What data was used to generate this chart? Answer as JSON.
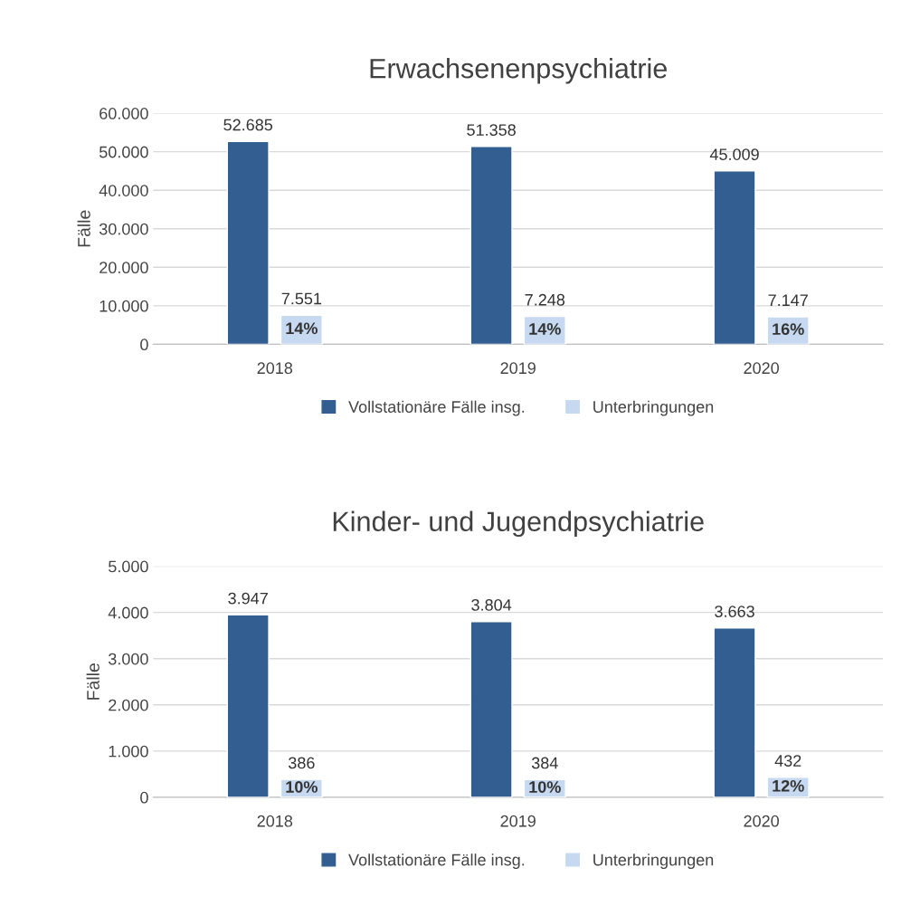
{
  "chart_data": [
    {
      "type": "bar",
      "title": "Erwachsenenpsychiatrie",
      "ylabel": "Fälle",
      "categories": [
        "2018",
        "2019",
        "2020"
      ],
      "series": [
        {
          "name": "Vollstationäre Fälle insg.",
          "color": "#335e91",
          "values": [
            52685,
            51358,
            45009
          ],
          "value_labels": [
            "52.685",
            "51.358",
            "45.009"
          ]
        },
        {
          "name": "Unterbringungen",
          "color": "#c6d9f0",
          "values": [
            7551,
            7248,
            7147
          ],
          "value_labels": [
            "7.551",
            "7.248",
            "7.147"
          ]
        }
      ],
      "ylim": [
        0,
        60000
      ],
      "yticks": [
        0,
        {
          "value": 10000,
          "label": "10.000"
        },
        {
          "value": 20000,
          "label": "20.000"
        },
        {
          "value": 30000,
          "label": "30.000"
        },
        {
          "value": 40000,
          "label": "40.000"
        },
        {
          "value": 50000,
          "label": "50.000"
        },
        {
          "value": 60000,
          "label": "60.000"
        }
      ],
      "annotations": [
        "14%",
        "14%",
        "16%"
      ],
      "grid": "y",
      "legend": "bottom"
    },
    {
      "type": "bar",
      "title": "Kinder- und Jugendpsychiatrie",
      "ylabel": "Fälle",
      "categories": [
        "2018",
        "2019",
        "2020"
      ],
      "series": [
        {
          "name": "Vollstationäre Fälle insg.",
          "color": "#335e91",
          "values": [
            3947,
            3804,
            3663
          ],
          "value_labels": [
            "3.947",
            "3.804",
            "3.663"
          ]
        },
        {
          "name": "Unterbringungen",
          "color": "#c6d9f0",
          "values": [
            386,
            384,
            432
          ],
          "value_labels": [
            "386",
            "384",
            "432"
          ]
        }
      ],
      "ylim": [
        0,
        5000
      ],
      "yticks": [
        0,
        {
          "value": 1000,
          "label": "1.000"
        },
        {
          "value": 2000,
          "label": "2.000"
        },
        {
          "value": 3000,
          "label": "3.000"
        },
        {
          "value": 4000,
          "label": "4.000"
        },
        {
          "value": 5000,
          "label": "5.000"
        }
      ],
      "annotations": [
        "10%",
        "10%",
        "12%"
      ],
      "grid": "y",
      "legend": "bottom"
    }
  ]
}
